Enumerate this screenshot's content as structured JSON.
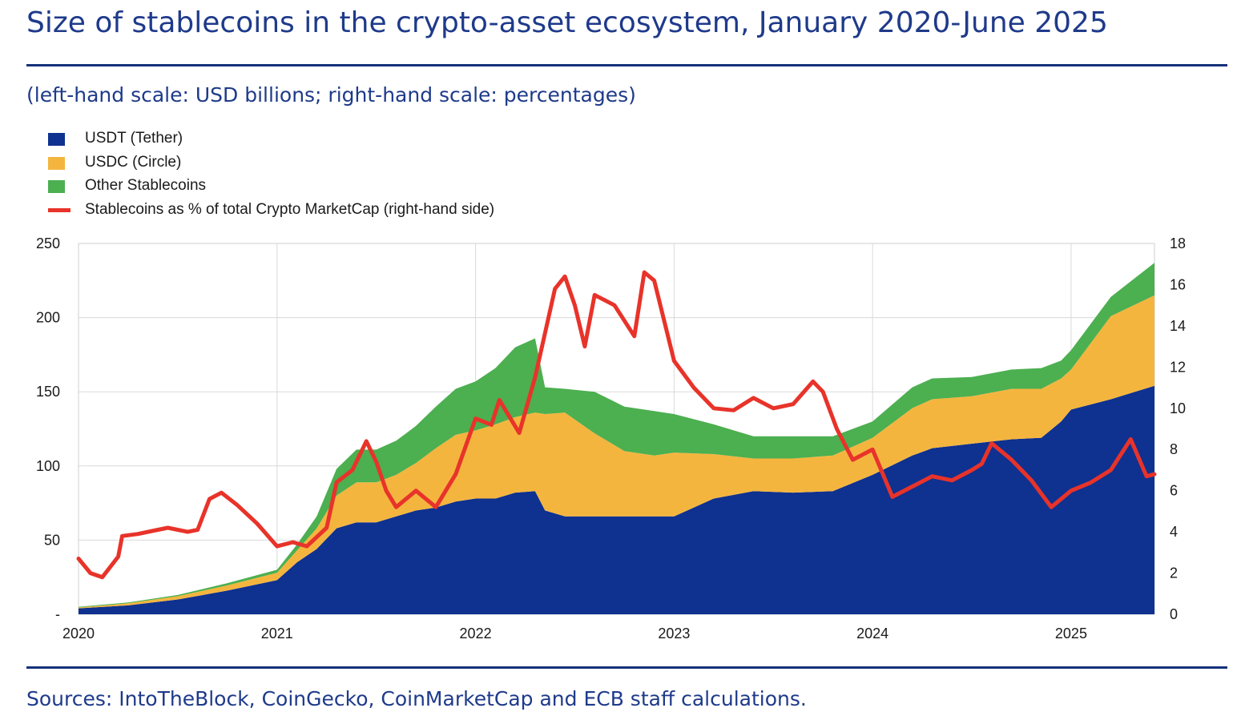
{
  "header": {
    "title": "Size of stablecoins in the crypto-asset ecosystem, January 2020-June 2025",
    "subtitle": "(left-hand scale: USD billions; right-hand scale: percentages)"
  },
  "footer": {
    "source": "Sources: IntoTheBlock, CoinGecko, CoinMarketCap and ECB staff calculations."
  },
  "colors": {
    "usdt": "#0f318f",
    "usdc": "#f4b53f",
    "other": "#4caf50",
    "ratio": "#e8332a",
    "grid": "#d9d9d9",
    "rule": "#14317a"
  },
  "chart_data": {
    "type": "area",
    "stacked": true,
    "legend_position": "top-left",
    "grid": true,
    "x_ticks": [
      "2020",
      "2021",
      "2022",
      "2023",
      "2024",
      "2025"
    ],
    "y_left": {
      "range": [
        0,
        250
      ],
      "ticks": [
        "-",
        "50",
        "100",
        "150",
        "200",
        "250"
      ],
      "tick_values": [
        0,
        50,
        100,
        150,
        200,
        250
      ]
    },
    "y_right": {
      "range": [
        0,
        18
      ],
      "ticks": [
        "0",
        "2",
        "4",
        "6",
        "8",
        "10",
        "12",
        "14",
        "16",
        "18"
      ],
      "tick_values": [
        0,
        2,
        4,
        6,
        8,
        10,
        12,
        14,
        16,
        18
      ]
    },
    "x": [
      2020.0,
      2020.25,
      2020.5,
      2020.75,
      2021.0,
      2021.1,
      2021.2,
      2021.3,
      2021.4,
      2021.5,
      2021.6,
      2021.7,
      2021.8,
      2021.9,
      2022.0,
      2022.1,
      2022.2,
      2022.3,
      2022.35,
      2022.45,
      2022.6,
      2022.75,
      2022.9,
      2023.0,
      2023.2,
      2023.4,
      2023.6,
      2023.8,
      2024.0,
      2024.2,
      2024.3,
      2024.5,
      2024.7,
      2024.85,
      2024.95,
      2025.0,
      2025.2,
      2025.42
    ],
    "series": [
      {
        "name": "USDT (Tether)",
        "kind": "area",
        "axis": "left",
        "values": [
          4,
          6,
          10,
          16,
          23,
          35,
          44,
          58,
          62,
          62,
          66,
          70,
          72,
          76,
          78,
          78,
          82,
          83,
          70,
          66,
          66,
          66,
          66,
          66,
          78,
          83,
          82,
          83,
          94,
          107,
          112,
          115,
          118,
          119,
          130,
          138,
          145,
          154
        ]
      },
      {
        "name": "USDC (Circle)",
        "kind": "area",
        "axis": "left",
        "values": [
          0.6,
          1.4,
          2.2,
          3.5,
          5,
          8,
          14,
          22,
          27,
          27,
          28,
          32,
          40,
          45,
          46,
          50,
          51,
          53,
          65,
          70,
          56,
          44,
          41,
          43,
          30,
          22,
          23,
          24,
          25,
          32,
          33,
          32,
          34,
          33,
          29,
          27,
          56,
          61
        ]
      },
      {
        "name": "Other Stablecoins",
        "kind": "area",
        "axis": "left",
        "values": [
          0.4,
          0.6,
          0.8,
          1.5,
          2,
          4,
          8,
          18,
          22,
          22,
          23,
          25,
          28,
          31,
          33,
          38,
          47,
          50,
          18,
          16,
          28,
          30,
          30,
          26,
          20,
          15,
          15,
          13,
          11,
          14,
          14,
          13,
          13,
          14,
          12,
          13,
          13,
          22
        ]
      },
      {
        "name": "Stablecoins as % of total Crypto MarketCap (right-hand side)",
        "kind": "line",
        "axis": "right",
        "x": [
          2020.0,
          2020.06,
          2020.12,
          2020.2,
          2020.22,
          2020.3,
          2020.4,
          2020.45,
          2020.55,
          2020.6,
          2020.66,
          2020.72,
          2020.8,
          2020.9,
          2021.0,
          2021.08,
          2021.15,
          2021.25,
          2021.3,
          2021.38,
          2021.45,
          2021.5,
          2021.55,
          2021.6,
          2021.7,
          2021.8,
          2021.9,
          2022.0,
          2022.08,
          2022.12,
          2022.22,
          2022.3,
          2022.4,
          2022.45,
          2022.5,
          2022.55,
          2022.6,
          2022.7,
          2022.8,
          2022.85,
          2022.9,
          2023.0,
          2023.1,
          2023.2,
          2023.3,
          2023.4,
          2023.5,
          2023.6,
          2023.7,
          2023.75,
          2023.82,
          2023.9,
          2024.0,
          2024.1,
          2024.2,
          2024.3,
          2024.4,
          2024.5,
          2024.55,
          2024.6,
          2024.7,
          2024.8,
          2024.9,
          2025.0,
          2025.1,
          2025.2,
          2025.3,
          2025.38,
          2025.42
        ],
        "values": [
          2.7,
          2.0,
          1.8,
          2.8,
          3.8,
          3.9,
          4.1,
          4.2,
          4.0,
          4.1,
          5.6,
          5.9,
          5.3,
          4.4,
          3.3,
          3.5,
          3.3,
          4.2,
          6.4,
          7.0,
          8.4,
          7.4,
          6.0,
          5.2,
          6.0,
          5.2,
          6.8,
          9.5,
          9.2,
          10.4,
          8.8,
          11.5,
          15.8,
          16.4,
          15.0,
          13.0,
          15.5,
          15.0,
          13.5,
          16.6,
          16.2,
          12.3,
          11.0,
          10.0,
          9.9,
          10.5,
          10.0,
          10.2,
          11.3,
          10.8,
          9.0,
          7.5,
          8.0,
          5.7,
          6.2,
          6.7,
          6.5,
          7.0,
          7.3,
          8.3,
          7.5,
          6.5,
          5.2,
          6.0,
          6.4,
          7.0,
          8.5,
          6.7,
          6.8
        ]
      }
    ]
  }
}
